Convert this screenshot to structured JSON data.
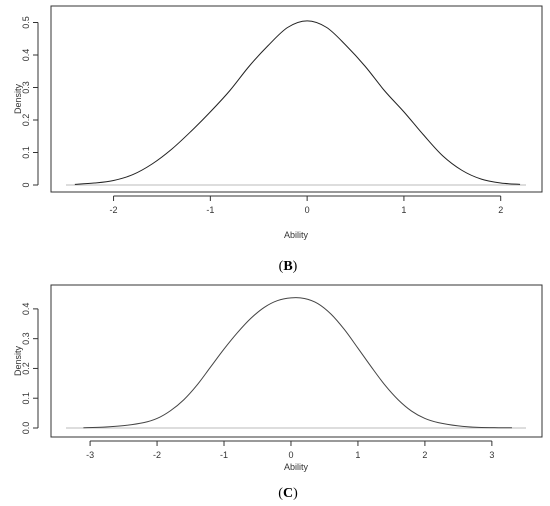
{
  "chart_data": [
    {
      "type": "line",
      "caption": {
        "open": "(",
        "letter": "B",
        "close": ")"
      },
      "xlabel": "Ability",
      "ylabel": "Density",
      "xlim": [
        -2.45,
        2.22
      ],
      "ylim": [
        0,
        0.52
      ],
      "xticks": [
        -2,
        -1,
        0,
        1,
        2
      ],
      "yticks": [
        0,
        0.1,
        0.2,
        0.3,
        0.4,
        0.5
      ],
      "xtick_labels": [
        "-2",
        "-1",
        "0",
        "1",
        "2"
      ],
      "ytick_labels": [
        "0",
        "0.1",
        "0.2",
        "0.3",
        "0.4",
        "0.5"
      ],
      "baseline": 0,
      "grid": false,
      "x": [
        -2.4,
        -2.2,
        -2.0,
        -1.8,
        -1.6,
        -1.4,
        -1.2,
        -1.0,
        -0.8,
        -0.6,
        -0.4,
        -0.2,
        0.0,
        0.2,
        0.4,
        0.6,
        0.8,
        1.0,
        1.2,
        1.4,
        1.6,
        1.8,
        2.0,
        2.2
      ],
      "y": [
        0.002,
        0.006,
        0.014,
        0.032,
        0.065,
        0.11,
        0.165,
        0.225,
        0.29,
        0.365,
        0.43,
        0.485,
        0.505,
        0.485,
        0.43,
        0.365,
        0.29,
        0.225,
        0.155,
        0.09,
        0.045,
        0.018,
        0.006,
        0.002
      ],
      "line_color": "#222222"
    },
    {
      "type": "line",
      "caption": {
        "open": "(",
        "letter": "C",
        "close": ")"
      },
      "xlabel": "Ability",
      "ylabel": "Density",
      "xlim": [
        -3.3,
        3.45
      ],
      "ylim": [
        0,
        0.45
      ],
      "xticks": [
        -3,
        -2,
        -1,
        0,
        1,
        2,
        3
      ],
      "yticks": [
        0,
        0.1,
        0.2,
        0.3,
        0.4
      ],
      "xtick_labels": [
        "-3",
        "-2",
        "-1",
        "0",
        "1",
        "2",
        "3"
      ],
      "ytick_labels": [
        "0.0",
        "0.1",
        "0.2",
        "0.3",
        "0.4"
      ],
      "baseline": 0,
      "grid": false,
      "x": [
        -3.1,
        -2.8,
        -2.5,
        -2.2,
        -2.0,
        -1.8,
        -1.6,
        -1.4,
        -1.2,
        -1.0,
        -0.8,
        -0.6,
        -0.4,
        -0.2,
        0.0,
        0.2,
        0.4,
        0.6,
        0.8,
        1.0,
        1.2,
        1.4,
        1.6,
        1.8,
        2.0,
        2.2,
        2.5,
        2.8,
        3.1,
        3.3
      ],
      "y": [
        0.001,
        0.003,
        0.008,
        0.018,
        0.032,
        0.058,
        0.095,
        0.145,
        0.205,
        0.265,
        0.32,
        0.368,
        0.405,
        0.428,
        0.437,
        0.435,
        0.418,
        0.382,
        0.33,
        0.268,
        0.205,
        0.145,
        0.095,
        0.057,
        0.032,
        0.018,
        0.007,
        0.002,
        0.001,
        0.001
      ],
      "line_color": "#444444"
    }
  ]
}
